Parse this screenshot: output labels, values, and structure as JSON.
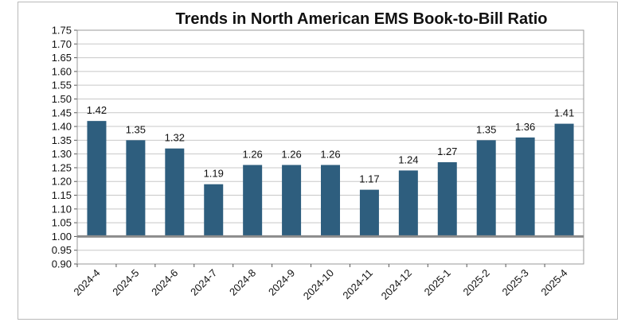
{
  "chart_data": {
    "type": "bar",
    "title": "Trends in North American EMS Book-to-Bill Ratio",
    "xlabel": "",
    "ylabel": "",
    "categories": [
      "2024-4",
      "2024-5",
      "2024-6",
      "2024-7",
      "2024-8",
      "2024-9",
      "2024-10",
      "2024-11",
      "2024-12",
      "2025-1",
      "2025-2",
      "2025-3",
      "2025-4"
    ],
    "values": [
      1.42,
      1.35,
      1.32,
      1.19,
      1.26,
      1.26,
      1.26,
      1.17,
      1.24,
      1.27,
      1.35,
      1.36,
      1.41
    ],
    "data_labels": [
      "1.42",
      "1.35",
      "1.32",
      "1.19",
      "1.26",
      "1.26",
      "1.26",
      "1.17",
      "1.24",
      "1.27",
      "1.35",
      "1.36",
      "1.41"
    ],
    "y_ticks": [
      "0.90",
      "0.95",
      "1.00",
      "1.05",
      "1.10",
      "1.15",
      "1.20",
      "1.25",
      "1.30",
      "1.35",
      "1.40",
      "1.45",
      "1.50",
      "1.55",
      "1.60",
      "1.65",
      "1.70",
      "1.75"
    ],
    "ylim": [
      0.9,
      1.75
    ],
    "baseline": 1.0,
    "grid": true,
    "legend": "none",
    "colors": {
      "bar": "#2e5e7e",
      "grid": "#c8c8c8",
      "baseline": "#8c8c8c",
      "border": "#b9b9b9"
    }
  }
}
